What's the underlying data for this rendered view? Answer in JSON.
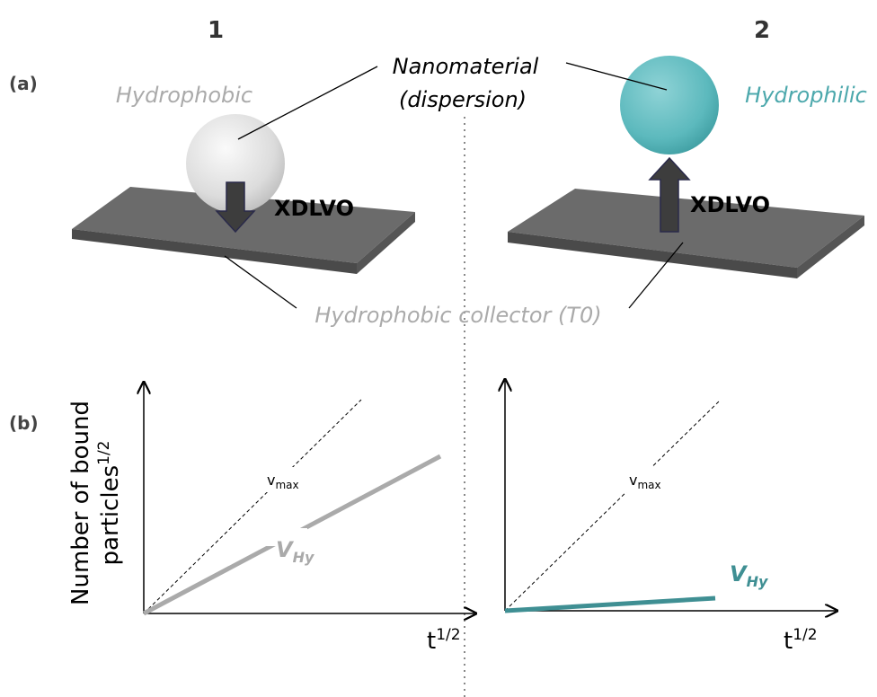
{
  "columns": [
    "1",
    "2"
  ],
  "panel_labels": {
    "a": "(a)",
    "b": "(b)"
  },
  "panel_a": {
    "left_particle": "Hydrophobic",
    "nanomaterial": [
      "Nanomaterial",
      "(dispersion)"
    ],
    "right_particle": "Hydrophilic",
    "force_left": "XDLVO",
    "force_right": "XDLVO",
    "collector": "Hydrophobic collector (T0)"
  },
  "panel_b": {
    "y_label": [
      "Number of bound",
      "particles"
    ],
    "y_label_sup": "1/2",
    "plots": [
      {
        "ref_line": "v",
        "ref_sub": "max",
        "rate": "V",
        "rate_sub": "Hy",
        "x_label": "t",
        "x_sup": "1/2"
      },
      {
        "ref_line": "v",
        "ref_sub": "max",
        "rate": "V",
        "rate_sub": "Hy",
        "x_label": "t",
        "x_sup": "1/2"
      }
    ]
  }
}
